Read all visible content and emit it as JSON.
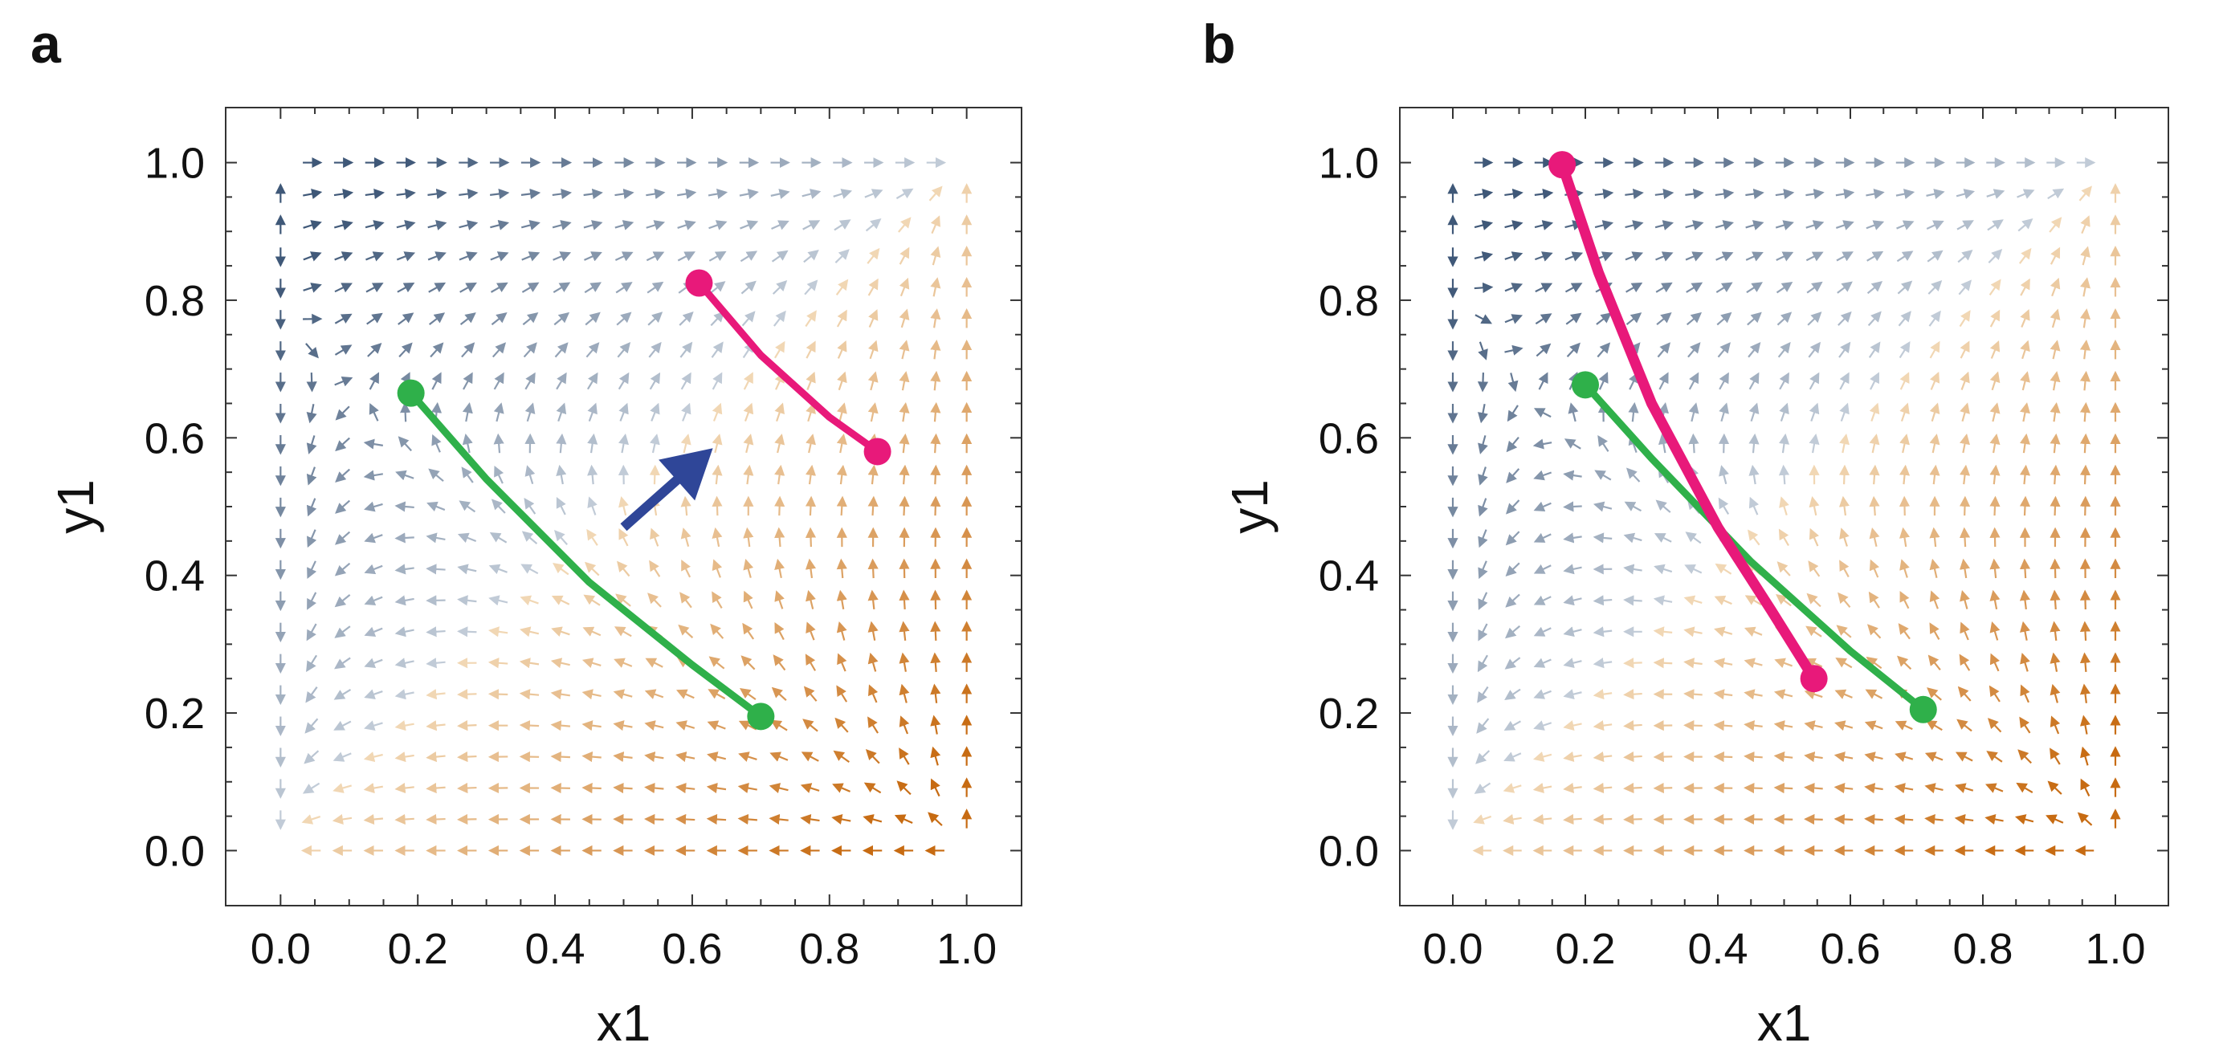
{
  "chart_data": [
    {
      "panel": "a",
      "type": "vector-field-with-trajectories",
      "xlabel": "x1",
      "ylabel": "y1",
      "xlim": [
        -0.08,
        1.08
      ],
      "ylim": [
        -0.08,
        1.08
      ],
      "xticks": [
        "0.0",
        "0.2",
        "0.4",
        "0.6",
        "0.8",
        "1.0"
      ],
      "yticks": [
        "0.0",
        "0.2",
        "0.4",
        "0.6",
        "0.8",
        "1.0"
      ],
      "field_saddle": [
        0.19,
        0.67
      ],
      "series": [
        {
          "name": "green trajectory",
          "color": "#2fb04a",
          "points": [
            [
              0.19,
              0.665
            ],
            [
              0.3,
              0.54
            ],
            [
              0.45,
              0.39
            ],
            [
              0.6,
              0.27
            ],
            [
              0.7,
              0.195
            ]
          ]
        },
        {
          "name": "magenta trajectory",
          "color": "#e8197a",
          "points": [
            [
              0.61,
              0.825
            ],
            [
              0.7,
              0.72
            ],
            [
              0.8,
              0.63
            ],
            [
              0.87,
              0.58
            ]
          ]
        }
      ],
      "annotation": {
        "type": "arrow",
        "color": "#2f4698",
        "from": [
          0.5,
          0.47
        ],
        "to": [
          0.63,
          0.585
        ]
      }
    },
    {
      "panel": "b",
      "type": "vector-field-with-trajectories",
      "xlabel": "x1",
      "ylabel": "y1",
      "xlim": [
        -0.08,
        1.08
      ],
      "ylim": [
        -0.08,
        1.08
      ],
      "xticks": [
        "0.0",
        "0.2",
        "0.4",
        "0.6",
        "0.8",
        "1.0"
      ],
      "yticks": [
        "0.0",
        "0.2",
        "0.4",
        "0.6",
        "0.8",
        "1.0"
      ],
      "field_saddle": [
        0.2,
        0.68
      ],
      "series": [
        {
          "name": "green trajectory",
          "color": "#2fb04a",
          "points": [
            [
              0.2,
              0.677
            ],
            [
              0.3,
              0.57
            ],
            [
              0.45,
              0.42
            ],
            [
              0.6,
              0.29
            ],
            [
              0.71,
              0.205
            ]
          ]
        },
        {
          "name": "magenta trajectory",
          "color": "#e8197a",
          "points": [
            [
              0.165,
              0.997
            ],
            [
              0.22,
              0.84
            ],
            [
              0.3,
              0.65
            ],
            [
              0.4,
              0.47
            ],
            [
              0.48,
              0.35
            ],
            [
              0.545,
              0.25
            ]
          ]
        }
      ]
    }
  ]
}
